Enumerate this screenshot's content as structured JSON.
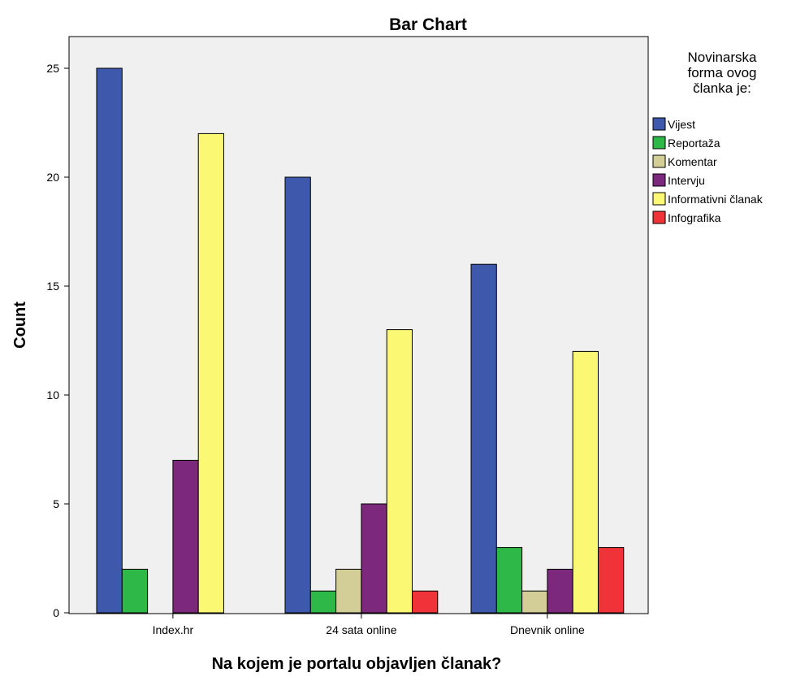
{
  "chart_data": {
    "type": "bar",
    "title": "Bar Chart",
    "xlabel": "Na kojem je portalu objavljen članak?",
    "ylabel": "Count",
    "categories": [
      "Index.hr",
      "24 sata online",
      "Dnevnik online"
    ],
    "ylim": [
      0,
      27
    ],
    "yticks": [
      0,
      5,
      10,
      15,
      20,
      25
    ],
    "grid": false,
    "legend_title": [
      "Novinarska",
      "forma ovog",
      "članka je:"
    ],
    "legend_position": "right",
    "series": [
      {
        "name": "Vijest",
        "color": "#3e58ac",
        "values": [
          25,
          20,
          16
        ]
      },
      {
        "name": "Reportaža",
        "color": "#2eb848",
        "values": [
          2,
          1,
          3
        ]
      },
      {
        "name": "Komentar",
        "color": "#d3ce97",
        "values": [
          0,
          2,
          1
        ]
      },
      {
        "name": "Intervju",
        "color": "#7c287d",
        "values": [
          7,
          5,
          2
        ]
      },
      {
        "name": "Informativni članak",
        "color": "#fbf873",
        "values": [
          22,
          13,
          12
        ]
      },
      {
        "name": "Infografika",
        "color": "#ef3338",
        "values": [
          0,
          1,
          3
        ]
      }
    ],
    "plot_background": "#f0f0f0"
  }
}
